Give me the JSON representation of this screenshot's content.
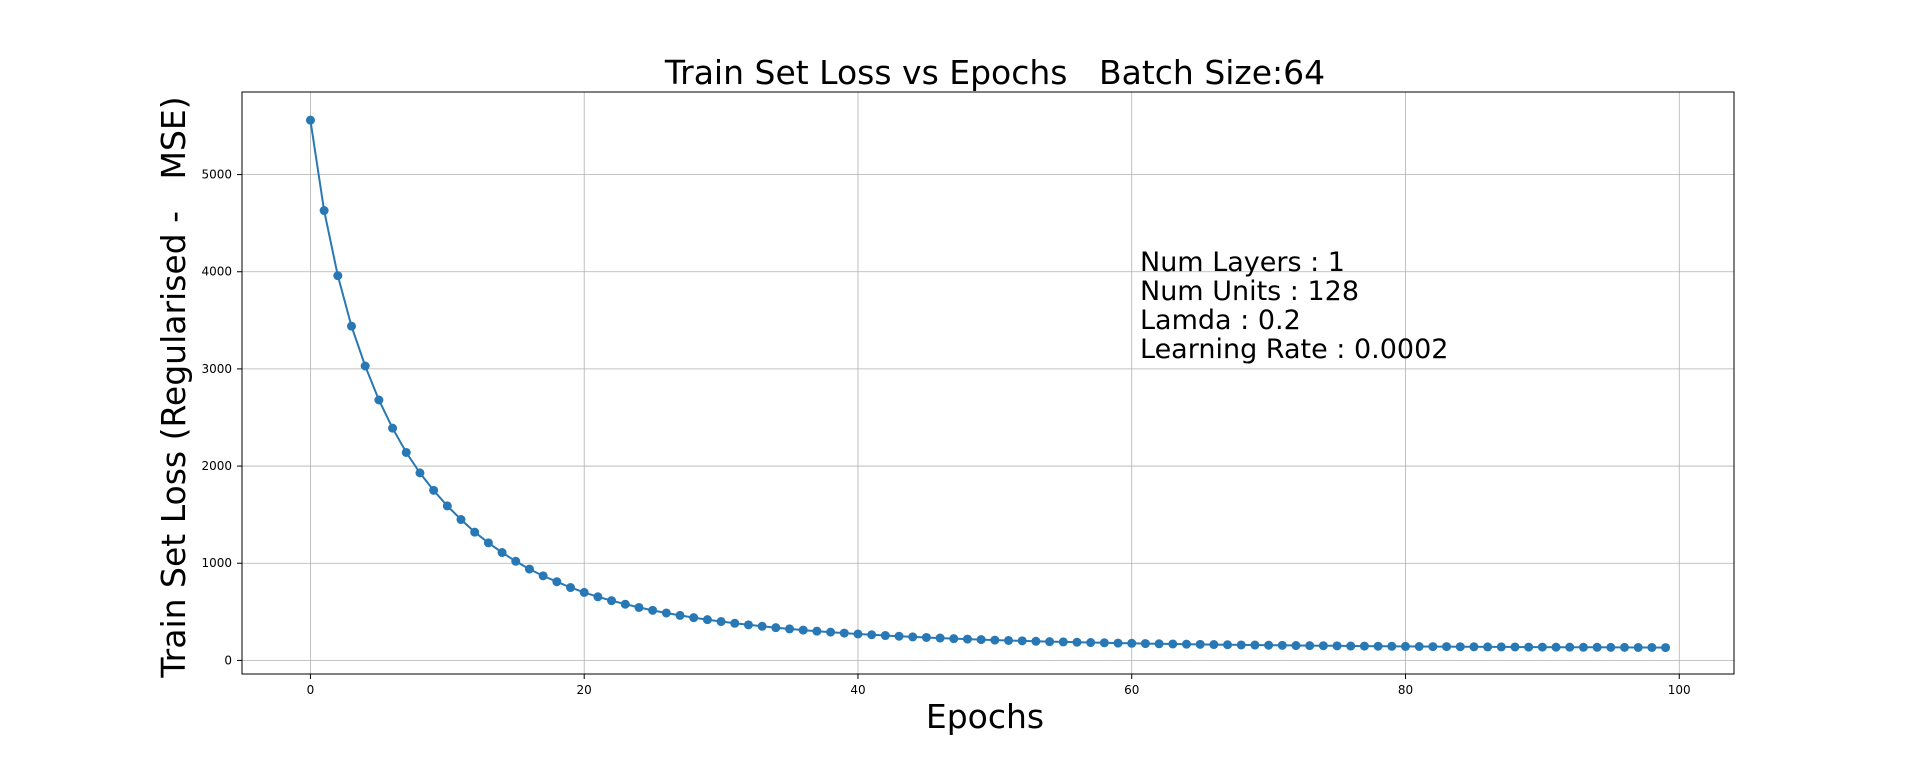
{
  "chart_data": {
    "type": "line",
    "title": "Train Set Loss vs Epochs   Batch Size:64",
    "xlabel": "Epochs",
    "ylabel": "Train Set Loss (Regularised -   MSE)",
    "xlim": [
      -5,
      104
    ],
    "ylim": [
      -140,
      5850
    ],
    "xticks": [
      0,
      20,
      40,
      60,
      80,
      100
    ],
    "yticks": [
      0,
      1000,
      2000,
      3000,
      4000,
      5000
    ],
    "grid": true,
    "annotation": [
      "Num Layers : 1",
      "Num Units : 128",
      "Lamda : 0.2",
      "Learning Rate : 0.0002"
    ],
    "series": [
      {
        "color": "#2878b5",
        "marker": "circle",
        "x": [
          0,
          1,
          2,
          3,
          4,
          5,
          6,
          7,
          8,
          9,
          10,
          11,
          12,
          13,
          14,
          15,
          16,
          17,
          18,
          19,
          20,
          21,
          22,
          23,
          24,
          25,
          26,
          27,
          28,
          29,
          30,
          31,
          32,
          33,
          34,
          35,
          36,
          37,
          38,
          39,
          40,
          41,
          42,
          43,
          44,
          45,
          46,
          47,
          48,
          49,
          50,
          51,
          52,
          53,
          54,
          55,
          56,
          57,
          58,
          59,
          60,
          61,
          62,
          63,
          64,
          65,
          66,
          67,
          68,
          69,
          70,
          71,
          72,
          73,
          74,
          75,
          76,
          77,
          78,
          79,
          80,
          81,
          82,
          83,
          84,
          85,
          86,
          87,
          88,
          89,
          90,
          91,
          92,
          93,
          94,
          95,
          96,
          97,
          98,
          99
        ],
        "y": [
          5560,
          4630,
          3960,
          3440,
          3030,
          2680,
          2390,
          2140,
          1930,
          1750,
          1590,
          1450,
          1320,
          1210,
          1110,
          1020,
          940,
          870,
          810,
          750,
          700,
          655,
          615,
          578,
          545,
          515,
          488,
          463,
          440,
          419,
          400,
          382,
          366,
          351,
          337,
          324,
          312,
          301,
          291,
          281,
          272,
          264,
          256,
          249,
          242,
          236,
          230,
          224,
          219,
          214,
          209,
          205,
          201,
          197,
          193,
          190,
          187,
          184,
          181,
          178,
          176,
          173,
          171,
          169,
          167,
          165,
          163,
          161,
          159,
          158,
          156,
          155,
          153,
          152,
          151,
          150,
          148,
          147,
          146,
          145,
          144,
          143,
          142,
          142,
          141,
          140,
          139,
          139,
          138,
          137,
          137,
          136,
          136,
          135,
          135,
          134,
          134,
          133,
          133,
          132
        ]
      }
    ]
  }
}
